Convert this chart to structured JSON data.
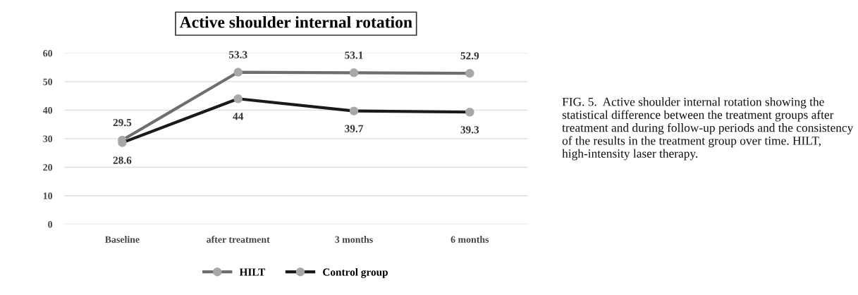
{
  "chart_data": {
    "type": "line",
    "title": "Active shoulder internal rotation",
    "categories": [
      "Baseline",
      "after treatment",
      "3 months",
      "6 months"
    ],
    "series": [
      {
        "name": "HILT",
        "color": "#6e6e6e",
        "values": [
          29.5,
          53.3,
          53.1,
          52.9
        ]
      },
      {
        "name": "Control group",
        "color": "#1a1a1a",
        "values": [
          28.6,
          44,
          39.7,
          39.3
        ]
      }
    ],
    "ylim": [
      0,
      60
    ],
    "yticks": [
      0,
      10,
      20,
      30,
      40,
      50,
      60
    ],
    "grid": "y",
    "legend": "bottom",
    "marker": "circle",
    "line_style": "solid",
    "data_labels": true,
    "annotations": [
      "FIG. 5.  Active shoulder internal rotation showing the statistical difference between the treatment groups after treatment and during follow-up periods and the consistency of the results in the treatment group over time. HILT, high-intensity laser therapy."
    ]
  }
}
